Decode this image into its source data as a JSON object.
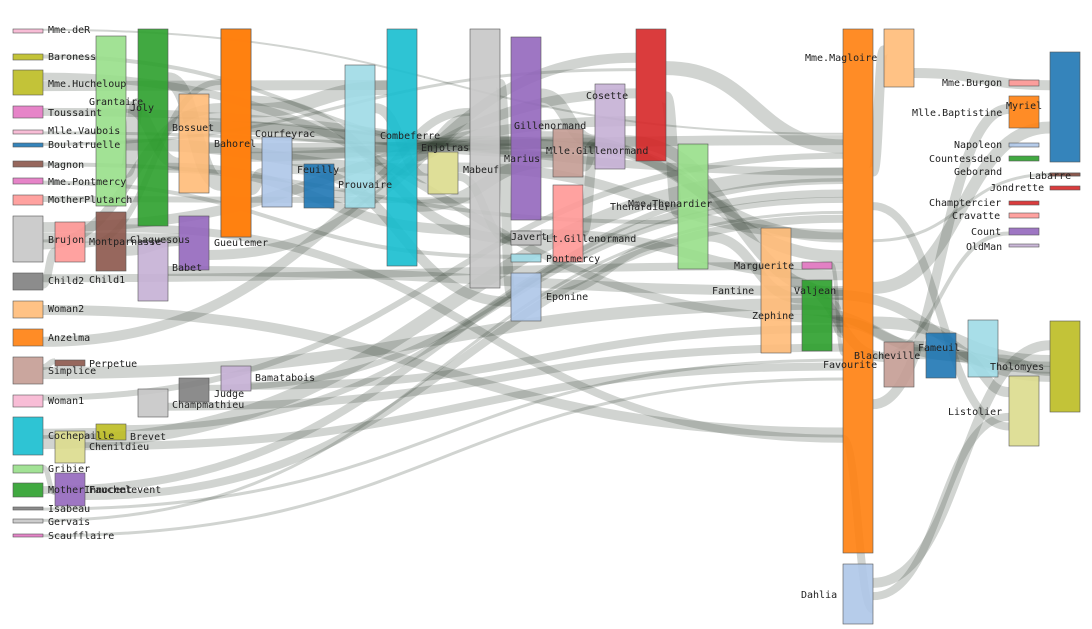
{
  "diagram": {
    "type": "sankey",
    "nodes": [
      {
        "name": "Mme.deR",
        "color": "#f7b6d2"
      },
      {
        "name": "Baroness",
        "color": "#bcbd22"
      },
      {
        "name": "Mme.Hucheloup",
        "color": "#bcbd22"
      },
      {
        "name": "Toussaint",
        "color": "#e377c2"
      },
      {
        "name": "Mlle.Vaubois",
        "color": "#f7b6d2"
      },
      {
        "name": "Boulatruelle",
        "color": "#1f77b4"
      },
      {
        "name": "Magnon",
        "color": "#8c564b"
      },
      {
        "name": "Mme.Pontmercy",
        "color": "#e377c2"
      },
      {
        "name": "MotherPlutarch",
        "color": "#ff9896"
      },
      {
        "name": "Brujon",
        "color": "#c7c7c7"
      },
      {
        "name": "Child2",
        "color": "#7f7f7f"
      },
      {
        "name": "Woman2",
        "color": "#ffbb78"
      },
      {
        "name": "Anzelma",
        "color": "#ff7f0e"
      },
      {
        "name": "Simplice",
        "color": "#c49c94"
      },
      {
        "name": "Woman1",
        "color": "#f7b6d2"
      },
      {
        "name": "Cochepaille",
        "color": "#17becf"
      },
      {
        "name": "Gribier",
        "color": "#98df8a"
      },
      {
        "name": "MotherInnocent",
        "color": "#2ca02c"
      },
      {
        "name": "Isabeau",
        "color": "#7f7f7f"
      },
      {
        "name": "Gervais",
        "color": "#c7c7c7"
      },
      {
        "name": "Scaufflaire",
        "color": "#e377c2"
      },
      {
        "name": "Grantaire",
        "color": "#98df8a"
      },
      {
        "name": "Joly",
        "color": "#2ca02c"
      },
      {
        "name": "Bossuet",
        "color": "#ffbb78"
      },
      {
        "name": "Bahorel",
        "color": "#ff7f0e"
      },
      {
        "name": "Courfeyrac",
        "color": "#aec7e8"
      },
      {
        "name": "Feuilly",
        "color": "#1f77b4"
      },
      {
        "name": "Prouvaire",
        "color": "#9edae5"
      },
      {
        "name": "Combeferre",
        "color": "#17becf"
      },
      {
        "name": "Enjolras",
        "color": "#dbdb8d"
      },
      {
        "name": "Mabeuf",
        "color": "#c7c7c7"
      },
      {
        "name": "Montparnasse",
        "color": "#8c564b"
      },
      {
        "name": "Claquesous",
        "color": "#c5b0d5"
      },
      {
        "name": "Babet",
        "color": "#9467bd"
      },
      {
        "name": "Gueulemer",
        "color": "#ff7f0e"
      },
      {
        "name": "Child1",
        "color": "#ff9896"
      },
      {
        "name": "Perpetue",
        "color": "#8c564b"
      },
      {
        "name": "Bamatabois",
        "color": "#c5b0d5"
      },
      {
        "name": "Judge",
        "color": "#7f7f7f"
      },
      {
        "name": "Champmathieu",
        "color": "#c7c7c7"
      },
      {
        "name": "Brevet",
        "color": "#bcbd22"
      },
      {
        "name": "Chenildieu",
        "color": "#dbdb8d"
      },
      {
        "name": "Fauchelevent",
        "color": "#9467bd"
      },
      {
        "name": "Gillenormand",
        "color": "#9467bd"
      },
      {
        "name": "Marius",
        "color": "#c49c94"
      },
      {
        "name": "Mlle.Gillenormand",
        "color": "#ff9896"
      },
      {
        "name": "Javert",
        "color": "#7f7f7f"
      },
      {
        "name": "Lt.Gillenormand",
        "color": "#c7c7c7"
      },
      {
        "name": "Pontmercy",
        "color": "#9edae5"
      },
      {
        "name": "Eponine",
        "color": "#aec7e8"
      },
      {
        "name": "Cosette",
        "color": "#c5b0d5"
      },
      {
        "name": "Thenardier",
        "color": "#d62728"
      },
      {
        "name": "Mme.Thenardier",
        "color": "#98df8a"
      },
      {
        "name": "Fantine",
        "color": "#2ca02c"
      },
      {
        "name": "Marguerite",
        "color": "#e377c2"
      },
      {
        "name": "Valjean",
        "color": "#ff7f0e"
      },
      {
        "name": "Zephine",
        "color": "#ffbb78"
      },
      {
        "name": "Mme.Magloire",
        "color": "#ffbb78"
      },
      {
        "name": "Blacheville",
        "color": "#1f77b4"
      },
      {
        "name": "Favourite",
        "color": "#c49c94"
      },
      {
        "name": "Dahlia",
        "color": "#aec7e8"
      },
      {
        "name": "Fameuil",
        "color": "#9edae5"
      },
      {
        "name": "Listolier",
        "color": "#dbdb8d"
      },
      {
        "name": "Tholomyes",
        "color": "#bcbd22"
      },
      {
        "name": "Mme.Burgon",
        "color": "#ff9896"
      },
      {
        "name": "Mlle.Baptistine",
        "color": "#ff7f0e"
      },
      {
        "name": "Myriel",
        "color": "#1f77b4"
      },
      {
        "name": "Napoleon",
        "color": "#aec7e8"
      },
      {
        "name": "CountessdeLo",
        "color": "#2ca02c"
      },
      {
        "name": "Geborand",
        "color": "#8c564b"
      },
      {
        "name": "Labarre",
        "color": "#8c564b"
      },
      {
        "name": "Jondrette",
        "color": "#d62728"
      },
      {
        "name": "Champtercier",
        "color": "#d62728"
      },
      {
        "name": "Cravatte",
        "color": "#ff9896"
      },
      {
        "name": "Count",
        "color": "#9467bd"
      },
      {
        "name": "OldMan",
        "color": "#c5b0d5"
      },
      {
        "name": "Gillenormand",
        "color": "#9467bd"
      }
    ]
  }
}
